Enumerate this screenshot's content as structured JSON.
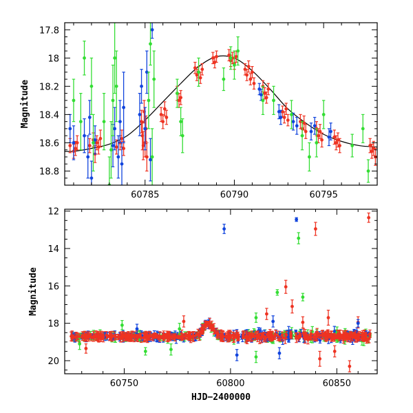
{
  "chart_data": [
    {
      "type": "scatter",
      "title": "",
      "xlabel": "",
      "ylabel": "Magnitude",
      "xlim": [
        60780.5,
        60798.0
      ],
      "ylim": [
        18.9,
        17.75
      ],
      "y_inverted": true,
      "x_ticks": [
        60785,
        60790,
        60795
      ],
      "y_ticks": [
        17.8,
        18.0,
        18.2,
        18.4,
        18.6,
        18.8
      ],
      "grid": false,
      "legend": "none",
      "colors": {
        "red": "#ee3322",
        "blue": "#1144dd",
        "green": "#33dd33",
        "model": "#000000"
      },
      "model_curve": {
        "x": [
          60780.5,
          60781,
          60782,
          60783,
          60784,
          60785,
          60786,
          60787,
          60788,
          60789,
          60790,
          60791,
          60792,
          60793,
          60794,
          60795,
          60796,
          60797,
          60798
        ],
        "y": [
          18.66,
          18.66,
          18.64,
          18.61,
          18.55,
          18.44,
          18.31,
          18.18,
          18.06,
          17.99,
          18.0,
          18.09,
          18.22,
          18.36,
          18.46,
          18.54,
          18.59,
          18.62,
          18.63
        ]
      },
      "series": [
        {
          "color": "red",
          "points": [
            [
              60780.8,
              18.62,
              0.05
            ],
            [
              60781.0,
              18.66,
              0.05
            ],
            [
              60781.1,
              18.64,
              0.05
            ],
            [
              60781.2,
              18.6,
              0.05
            ],
            [
              60781.9,
              18.62,
              0.05
            ],
            [
              60782.1,
              18.58,
              0.05
            ],
            [
              60782.2,
              18.68,
              0.06
            ],
            [
              60782.3,
              18.6,
              0.05
            ],
            [
              60782.4,
              18.63,
              0.05
            ],
            [
              60782.5,
              18.57,
              0.06
            ],
            [
              60783.4,
              18.63,
              0.05
            ],
            [
              60783.6,
              18.6,
              0.05
            ],
            [
              60783.7,
              18.57,
              0.06
            ],
            [
              60783.8,
              18.64,
              0.05
            ],
            [
              60784.8,
              18.45,
              0.08
            ],
            [
              60784.85,
              18.55,
              0.1
            ],
            [
              60784.9,
              18.62,
              0.1
            ],
            [
              60784.95,
              18.38,
              0.08
            ],
            [
              60785.0,
              18.6,
              0.1
            ],
            [
              60785.05,
              18.5,
              0.09
            ],
            [
              60785.1,
              18.7,
              0.1
            ],
            [
              60785.9,
              18.4,
              0.05
            ],
            [
              60786.0,
              18.45,
              0.05
            ],
            [
              60786.1,
              18.36,
              0.05
            ],
            [
              60786.2,
              18.42,
              0.05
            ],
            [
              60786.8,
              18.25,
              0.05
            ],
            [
              60786.9,
              18.3,
              0.05
            ],
            [
              60787.0,
              18.28,
              0.05
            ],
            [
              60787.8,
              18.07,
              0.04
            ],
            [
              60787.9,
              18.12,
              0.04
            ],
            [
              60788.0,
              18.1,
              0.04
            ],
            [
              60788.1,
              18.14,
              0.04
            ],
            [
              60788.2,
              18.08,
              0.04
            ],
            [
              60788.8,
              18.0,
              0.04
            ],
            [
              60788.9,
              18.03,
              0.04
            ],
            [
              60789.0,
              17.99,
              0.04
            ],
            [
              60789.7,
              17.98,
              0.04
            ],
            [
              60789.8,
              18.02,
              0.04
            ],
            [
              60789.9,
              18.0,
              0.04
            ],
            [
              60790.0,
              18.04,
              0.04
            ],
            [
              60790.1,
              17.99,
              0.04
            ],
            [
              60790.6,
              18.08,
              0.04
            ],
            [
              60790.7,
              18.12,
              0.04
            ],
            [
              60790.8,
              18.06,
              0.04
            ],
            [
              60790.9,
              18.15,
              0.04
            ],
            [
              60791.0,
              18.1,
              0.04
            ],
            [
              60791.1,
              18.18,
              0.04
            ],
            [
              60791.6,
              18.2,
              0.04
            ],
            [
              60791.7,
              18.25,
              0.04
            ],
            [
              60791.8,
              18.28,
              0.04
            ],
            [
              60791.9,
              18.22,
              0.04
            ],
            [
              60792.7,
              18.38,
              0.04
            ],
            [
              60792.8,
              18.42,
              0.04
            ],
            [
              60792.9,
              18.36,
              0.04
            ],
            [
              60793.0,
              18.44,
              0.04
            ],
            [
              60793.7,
              18.45,
              0.05
            ],
            [
              60793.8,
              18.5,
              0.05
            ],
            [
              60793.9,
              18.46,
              0.05
            ],
            [
              60794.0,
              18.52,
              0.05
            ],
            [
              60794.6,
              18.5,
              0.05
            ],
            [
              60794.7,
              18.55,
              0.05
            ],
            [
              60794.8,
              18.52,
              0.05
            ],
            [
              60794.9,
              18.58,
              0.05
            ],
            [
              60795.6,
              18.56,
              0.05
            ],
            [
              60795.7,
              18.6,
              0.05
            ],
            [
              60795.8,
              18.58,
              0.05
            ],
            [
              60795.9,
              18.62,
              0.05
            ],
            [
              60797.6,
              18.62,
              0.05
            ],
            [
              60797.7,
              18.66,
              0.05
            ],
            [
              60797.8,
              18.64,
              0.05
            ],
            [
              60797.9,
              18.7,
              0.06
            ]
          ]
        },
        {
          "color": "blue",
          "points": [
            [
              60780.8,
              18.5,
              0.1
            ],
            [
              60781.0,
              18.6,
              0.12
            ],
            [
              60781.6,
              18.55,
              0.12
            ],
            [
              60781.8,
              18.7,
              0.15
            ],
            [
              60781.9,
              18.42,
              0.12
            ],
            [
              60782.0,
              18.85,
              0.12
            ],
            [
              60782.2,
              18.58,
              0.1
            ],
            [
              60783.2,
              18.62,
              0.15
            ],
            [
              60783.3,
              18.5,
              0.15
            ],
            [
              60783.5,
              18.7,
              0.15
            ],
            [
              60783.6,
              18.45,
              0.15
            ],
            [
              60783.7,
              18.75,
              0.15
            ],
            [
              60783.8,
              18.35,
              0.25
            ],
            [
              60784.7,
              18.4,
              0.15
            ],
            [
              60784.8,
              18.2,
              0.12
            ],
            [
              60785.0,
              18.5,
              0.15
            ],
            [
              60785.1,
              18.1,
              0.15
            ],
            [
              60785.3,
              18.72,
              0.15
            ],
            [
              60785.4,
              17.8,
              0.06
            ],
            [
              60791.4,
              18.22,
              0.04
            ],
            [
              60791.5,
              18.26,
              0.04
            ],
            [
              60792.5,
              18.38,
              0.05
            ],
            [
              60792.6,
              18.42,
              0.05
            ],
            [
              60793.3,
              18.45,
              0.06
            ],
            [
              60793.5,
              18.48,
              0.06
            ],
            [
              60794.3,
              18.52,
              0.06
            ],
            [
              60794.5,
              18.48,
              0.06
            ],
            [
              60795.3,
              18.56,
              0.06
            ],
            [
              60795.4,
              18.52,
              0.06
            ]
          ]
        },
        {
          "color": "green",
          "points": [
            [
              60781.0,
              18.3,
              0.15
            ],
            [
              60781.4,
              18.45,
              0.2
            ],
            [
              60781.6,
              18.0,
              0.12
            ],
            [
              60782.0,
              18.2,
              0.2
            ],
            [
              60782.1,
              18.6,
              0.2
            ],
            [
              60782.7,
              18.45,
              0.2
            ],
            [
              60783.0,
              18.9,
              0.2
            ],
            [
              60783.1,
              18.65,
              0.2
            ],
            [
              60783.2,
              18.3,
              0.25
            ],
            [
              60783.3,
              18.0,
              0.25
            ],
            [
              60783.4,
              18.2,
              0.25
            ],
            [
              60785.2,
              18.3,
              0.2
            ],
            [
              60785.3,
              17.9,
              0.15
            ],
            [
              60785.4,
              18.7,
              0.2
            ],
            [
              60785.5,
              18.15,
              0.2
            ],
            [
              60786.8,
              18.25,
              0.1
            ],
            [
              60787.0,
              18.45,
              0.1
            ],
            [
              60787.1,
              18.55,
              0.12
            ],
            [
              60788.0,
              18.1,
              0.1
            ],
            [
              60789.4,
              18.15,
              0.08
            ],
            [
              60789.8,
              18.0,
              0.08
            ],
            [
              60790.0,
              18.05,
              0.1
            ],
            [
              60790.2,
              17.95,
              0.1
            ],
            [
              60791.6,
              18.3,
              0.1
            ],
            [
              60792.2,
              18.3,
              0.1
            ],
            [
              60793.2,
              18.4,
              0.1
            ],
            [
              60793.8,
              18.55,
              0.1
            ],
            [
              60794.2,
              18.7,
              0.1
            ],
            [
              60794.6,
              18.6,
              0.1
            ],
            [
              60795.0,
              18.4,
              0.1
            ],
            [
              60796.6,
              18.62,
              0.08
            ],
            [
              60797.2,
              18.5,
              0.1
            ],
            [
              60797.5,
              18.8,
              0.08
            ]
          ]
        }
      ]
    },
    {
      "type": "scatter",
      "title": "",
      "xlabel": "HJD−2400000",
      "ylabel": "Magnitude",
      "xlim": [
        60722,
        60869
      ],
      "ylim": [
        20.7,
        11.9
      ],
      "y_inverted": true,
      "x_ticks": [
        60750,
        60800,
        60850
      ],
      "y_ticks": [
        12,
        14,
        16,
        18,
        20
      ],
      "grid": false,
      "legend": "none",
      "colors": {
        "red": "#ee3322",
        "blue": "#1144dd",
        "green": "#33dd33",
        "model": "#000000"
      },
      "model_curve": {
        "x": [
          60725,
          60780,
          60782,
          60784,
          60786,
          60788,
          60789,
          60790,
          60792,
          60794,
          60796,
          60798,
          60810,
          60830,
          60866
        ],
        "y": [
          18.7,
          18.7,
          18.65,
          18.5,
          18.3,
          18.1,
          18.0,
          18.0,
          18.2,
          18.45,
          18.58,
          18.65,
          18.7,
          18.7,
          18.7
        ]
      },
      "outliers": [
        {
          "color": "blue",
          "x": 60797,
          "y": 12.95,
          "err": 0.25
        },
        {
          "color": "blue",
          "x": 60831,
          "y": 12.45,
          "err": 0.1
        },
        {
          "color": "red",
          "x": 60840,
          "y": 12.95,
          "err": 0.35
        },
        {
          "color": "red",
          "x": 60865,
          "y": 12.35,
          "err": 0.25
        },
        {
          "color": "green",
          "x": 60832,
          "y": 13.45,
          "err": 0.3
        },
        {
          "color": "red",
          "x": 60826,
          "y": 16.05,
          "err": 0.35
        },
        {
          "color": "green",
          "x": 60822,
          "y": 16.35,
          "err": 0.15
        },
        {
          "color": "green",
          "x": 60834,
          "y": 16.6,
          "err": 0.2
        },
        {
          "color": "red",
          "x": 60817,
          "y": 17.5,
          "err": 0.3
        },
        {
          "color": "red",
          "x": 60829,
          "y": 17.1,
          "err": 0.35
        },
        {
          "color": "red",
          "x": 60846,
          "y": 17.7,
          "err": 0.4
        },
        {
          "color": "red",
          "x": 60778,
          "y": 17.9,
          "err": 0.3
        },
        {
          "color": "green",
          "x": 60812,
          "y": 17.7,
          "err": 0.25
        },
        {
          "color": "blue",
          "x": 60820,
          "y": 17.9,
          "err": 0.3
        },
        {
          "color": "red",
          "x": 60834,
          "y": 17.95,
          "err": 0.3
        },
        {
          "color": "red",
          "x": 60860,
          "y": 17.95,
          "err": 0.3
        },
        {
          "color": "blue",
          "x": 60860,
          "y": 18.0,
          "err": 0.2
        },
        {
          "color": "blue",
          "x": 60756,
          "y": 18.3,
          "err": 0.25
        },
        {
          "color": "green",
          "x": 60749,
          "y": 18.1,
          "err": 0.25
        },
        {
          "color": "green",
          "x": 60776,
          "y": 18.3,
          "err": 0.3
        },
        {
          "color": "red",
          "x": 60732,
          "y": 19.35,
          "err": 0.25
        },
        {
          "color": "green",
          "x": 60729,
          "y": 19.1,
          "err": 0.3
        },
        {
          "color": "green",
          "x": 60760,
          "y": 19.5,
          "err": 0.2
        },
        {
          "color": "green",
          "x": 60772,
          "y": 19.4,
          "err": 0.3
        },
        {
          "color": "blue",
          "x": 60803,
          "y": 19.7,
          "err": 0.3
        },
        {
          "color": "green",
          "x": 60812,
          "y": 19.8,
          "err": 0.3
        },
        {
          "color": "blue",
          "x": 60823,
          "y": 19.6,
          "err": 0.3
        },
        {
          "color": "red",
          "x": 60842,
          "y": 19.9,
          "err": 0.4
        },
        {
          "color": "red",
          "x": 60856,
          "y": 20.3,
          "err": 0.3
        },
        {
          "color": "red",
          "x": 60849,
          "y": 19.5,
          "err": 0.3
        }
      ]
    }
  ]
}
